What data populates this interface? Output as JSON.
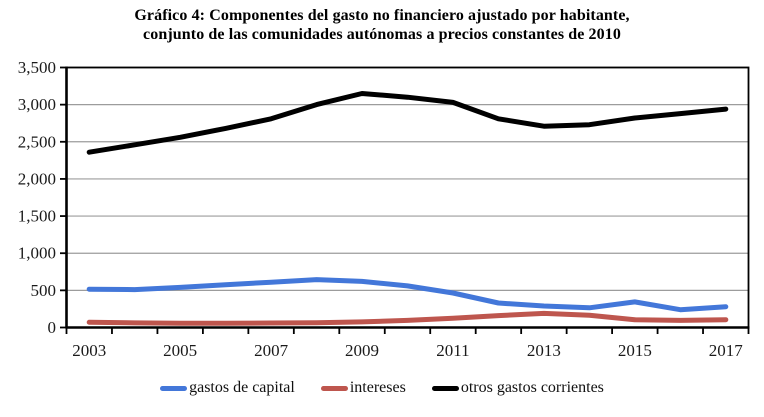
{
  "title": {
    "line1": "Gráfico 4: Componentes del gasto no financiero ajustado por habitante,",
    "line2": "conjunto de las comunidades autónomas a precios constantes de 2010"
  },
  "chart_data": {
    "type": "line",
    "title": "Gráfico 4: Componentes del gasto no financiero ajustado por habitante, conjunto de las comunidades autónomas a precios constantes de 2010",
    "x": [
      2003,
      2004,
      2005,
      2006,
      2007,
      2008,
      2009,
      2010,
      2011,
      2012,
      2013,
      2014,
      2015,
      2016,
      2017
    ],
    "x_tick_labels": [
      "2003",
      "2005",
      "2007",
      "2009",
      "2011",
      "2013",
      "2015",
      "2017"
    ],
    "y_tick_labels": [
      "0",
      "500",
      "1,000",
      "1,500",
      "2,000",
      "2,500",
      "3,000",
      "3,500"
    ],
    "ylim": [
      0,
      3500
    ],
    "y_step": 500,
    "grid": "horizontal",
    "legend_position": "bottom",
    "series": [
      {
        "name": "gastos de capital",
        "color": "#4377D9",
        "values": [
          515,
          510,
          540,
          575,
          610,
          645,
          620,
          560,
          465,
          330,
          290,
          265,
          345,
          240,
          280
        ]
      },
      {
        "name": "intereses",
        "color": "#BE564E",
        "values": [
          70,
          62,
          58,
          58,
          60,
          65,
          75,
          95,
          125,
          160,
          190,
          165,
          105,
          95,
          105
        ]
      },
      {
        "name": "otros gastos corrientes",
        "color": "#000000",
        "values": [
          2360,
          2460,
          2560,
          2680,
          2810,
          3000,
          3150,
          3100,
          3030,
          2810,
          2710,
          2730,
          2820,
          2880,
          2940
        ]
      }
    ],
    "colors": {
      "gridline": "#9c9c9c",
      "axis": "#000000",
      "tick_label": "#1a1a1a"
    }
  }
}
